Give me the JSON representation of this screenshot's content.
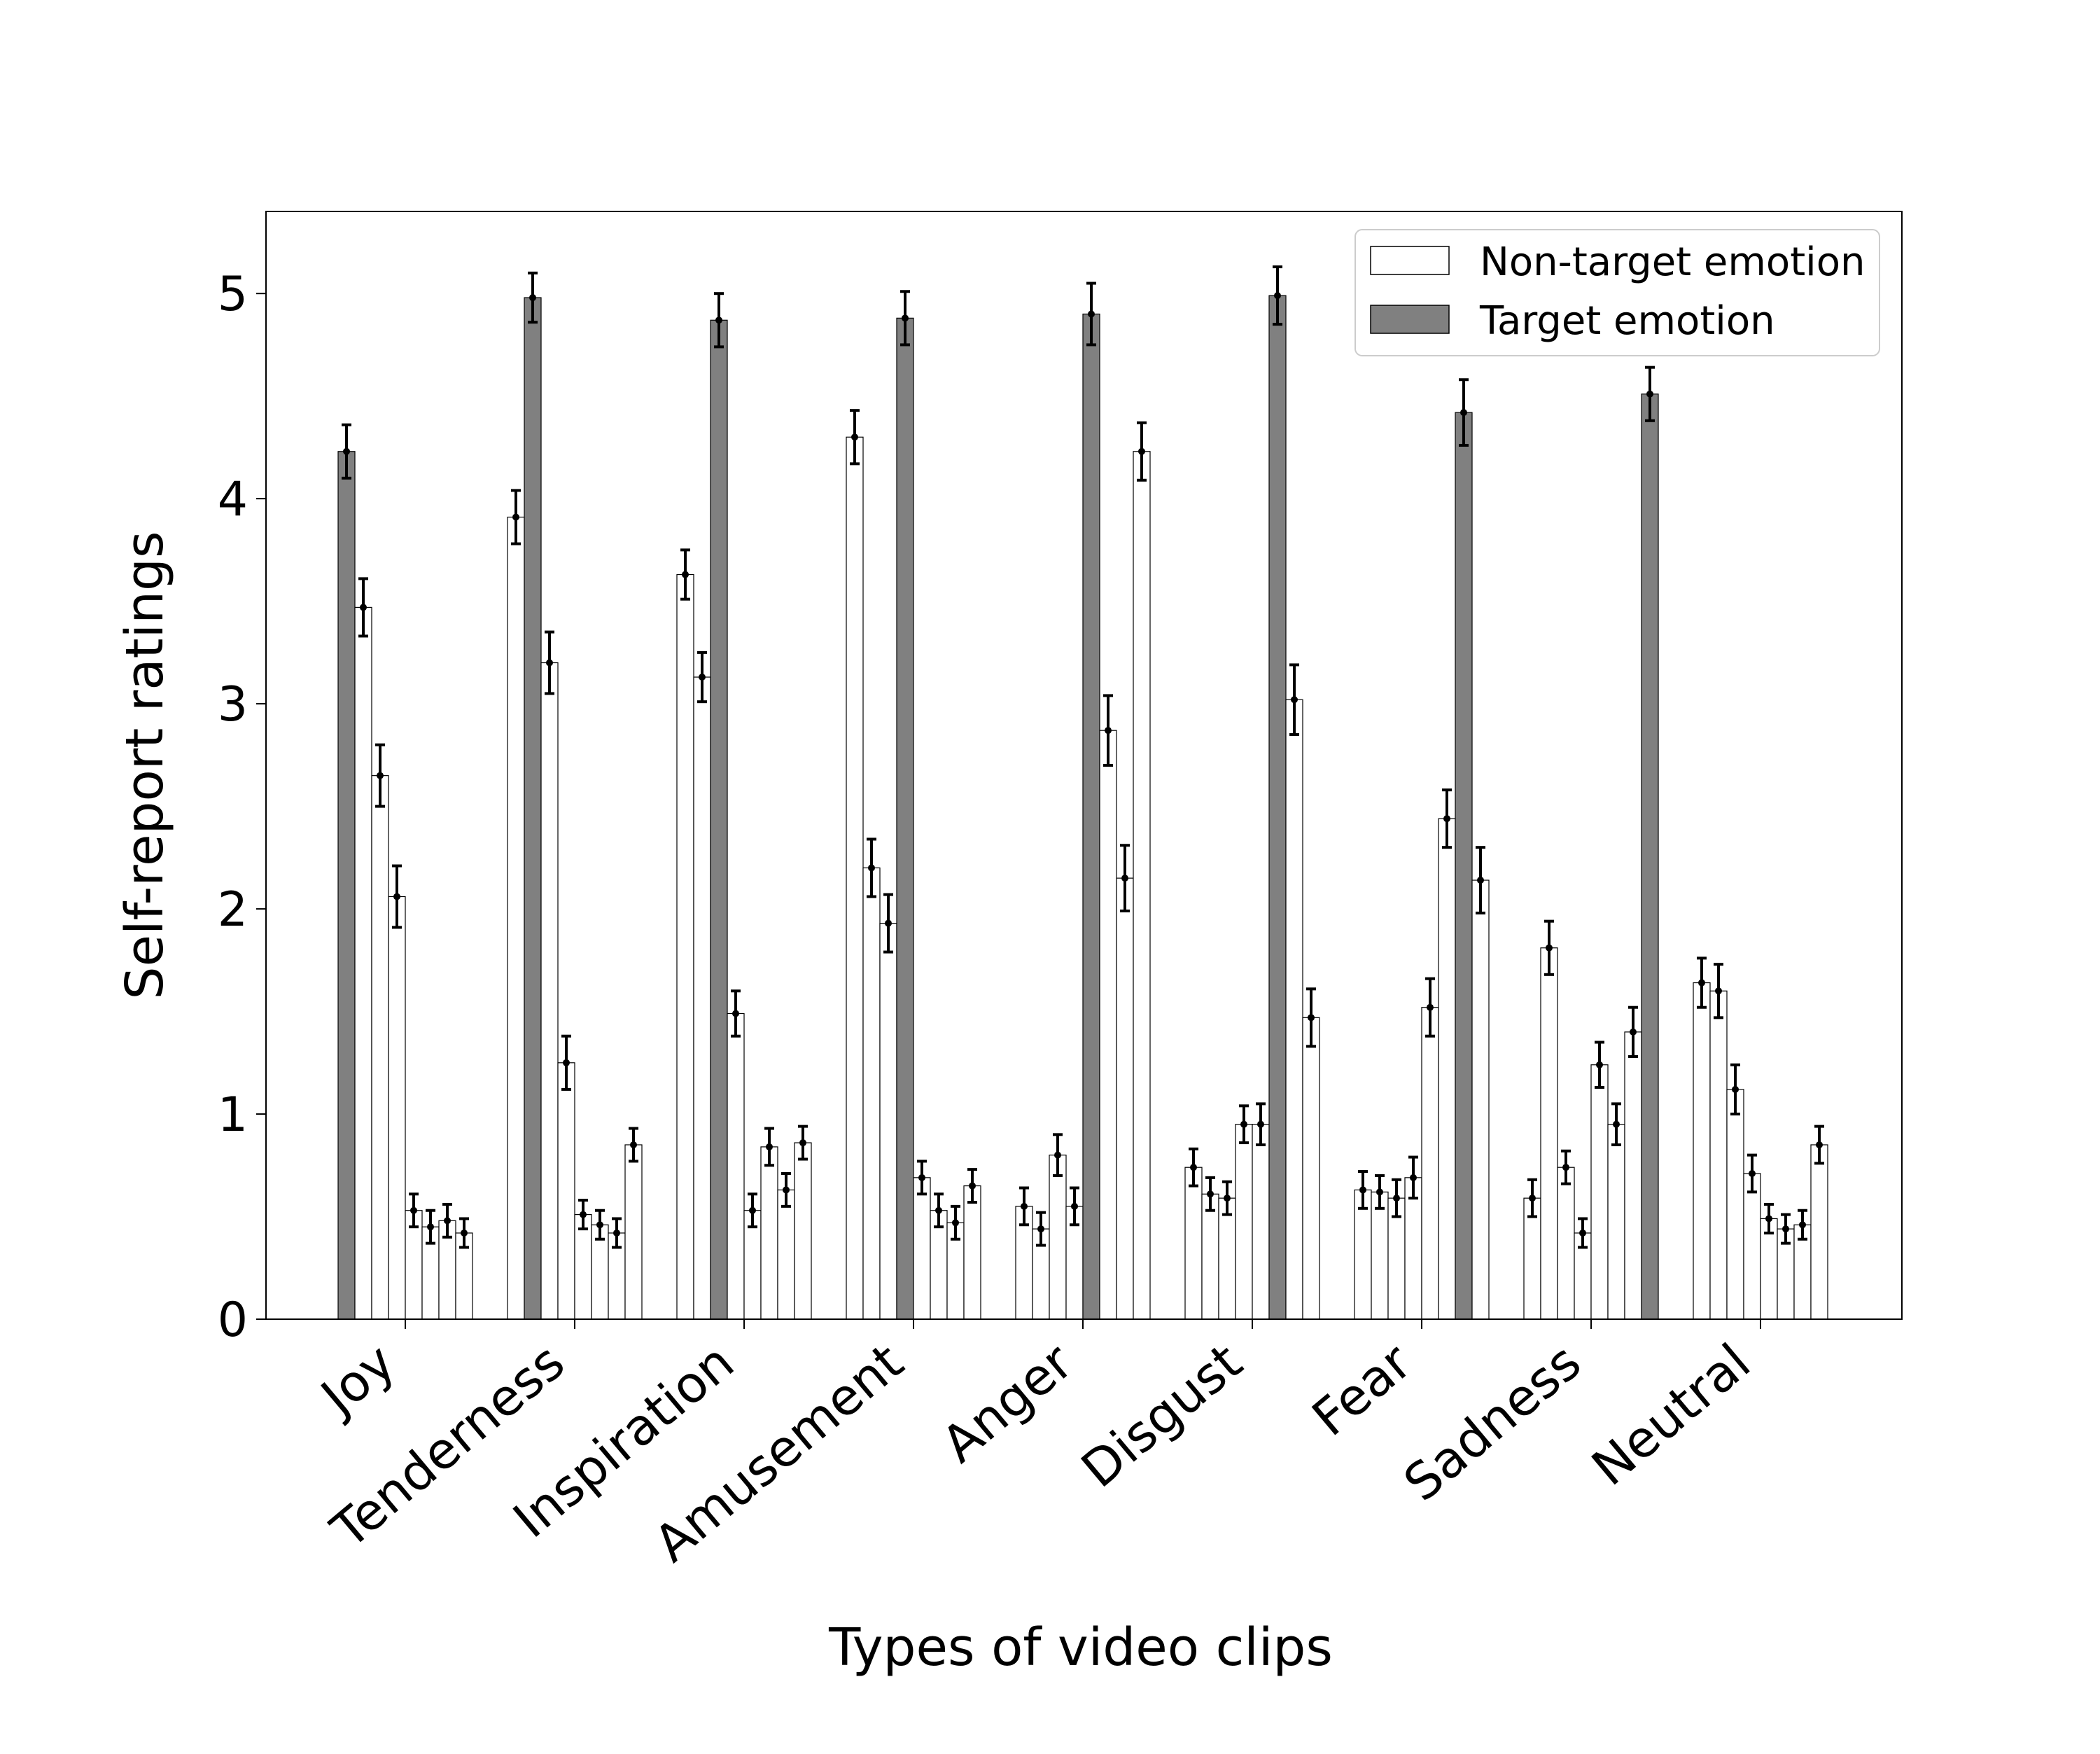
{
  "chart_data": {
    "type": "bar",
    "title": "",
    "xlabel": "Types of video clips",
    "ylabel": "Self-report ratings",
    "ylim": [
      0,
      5.4
    ],
    "yticks": [
      "0",
      "1",
      "2",
      "3",
      "4",
      "5"
    ],
    "grid": false,
    "legend_position": "top-right",
    "legend": [
      {
        "label": "Non-target emotion",
        "color": "#ffffff"
      },
      {
        "label": "Target emotion",
        "color": "#808080"
      }
    ],
    "colors": {
      "target": "#808080",
      "nontarget": "#ffffff",
      "edge": "#000000"
    },
    "categories": [
      "Joy",
      "Tenderness",
      "Inspiration",
      "Amusement",
      "Anger",
      "Disgust",
      "Fear",
      "Sadness",
      "Neutral"
    ],
    "groups": [
      {
        "category": "Joy",
        "values": [
          4.23,
          3.47,
          2.65,
          2.06,
          0.53,
          0.45,
          0.48,
          0.42
        ],
        "errors": [
          0.13,
          0.14,
          0.15,
          0.15,
          0.08,
          0.08,
          0.08,
          0.07
        ],
        "target_index": 0
      },
      {
        "category": "Tenderness",
        "values": [
          3.91,
          4.98,
          3.2,
          1.25,
          0.51,
          0.46,
          0.42,
          0.85
        ],
        "errors": [
          0.13,
          0.12,
          0.15,
          0.13,
          0.07,
          0.07,
          0.07,
          0.08
        ],
        "target_index": 1
      },
      {
        "category": "Inspiration",
        "values": [
          3.63,
          3.13,
          4.87,
          1.49,
          0.53,
          0.84,
          0.63,
          0.86
        ],
        "errors": [
          0.12,
          0.12,
          0.13,
          0.11,
          0.08,
          0.09,
          0.08,
          0.08
        ],
        "target_index": 2
      },
      {
        "category": "Amusement",
        "values": [
          4.3,
          2.2,
          1.93,
          4.88,
          0.69,
          0.53,
          0.47,
          0.65
        ],
        "errors": [
          0.13,
          0.14,
          0.14,
          0.13,
          0.08,
          0.08,
          0.08,
          0.08
        ],
        "target_index": 3
      },
      {
        "category": "Anger",
        "values": [
          0.55,
          0.44,
          0.8,
          0.55,
          4.9,
          2.87,
          2.15,
          4.23
        ],
        "errors": [
          0.09,
          0.08,
          0.1,
          0.09,
          0.15,
          0.17,
          0.16,
          0.14
        ],
        "target_index": 4
      },
      {
        "category": "Disgust",
        "values": [
          0.74,
          0.61,
          0.59,
          0.95,
          0.95,
          4.99,
          3.02,
          1.47
        ],
        "errors": [
          0.09,
          0.08,
          0.08,
          0.09,
          0.1,
          0.14,
          0.17,
          0.14
        ],
        "target_index": 5
      },
      {
        "category": "Fear",
        "values": [
          0.63,
          0.62,
          0.59,
          0.69,
          1.52,
          2.44,
          4.42,
          2.14
        ],
        "errors": [
          0.09,
          0.08,
          0.09,
          0.1,
          0.14,
          0.14,
          0.16,
          0.16
        ],
        "target_index": 6
      },
      {
        "category": "Sadness",
        "values": [
          0.59,
          1.81,
          0.74,
          0.42,
          1.24,
          0.95,
          1.4,
          4.51
        ],
        "errors": [
          0.09,
          0.13,
          0.08,
          0.07,
          0.11,
          0.1,
          0.12,
          0.13
        ],
        "target_index": 7
      },
      {
        "category": "Neutral",
        "values": [
          1.64,
          1.6,
          1.12,
          0.71,
          0.49,
          0.44,
          0.46,
          0.85
        ],
        "errors": [
          0.12,
          0.13,
          0.12,
          0.09,
          0.07,
          0.07,
          0.07,
          0.09
        ],
        "target_index": -1
      }
    ]
  }
}
